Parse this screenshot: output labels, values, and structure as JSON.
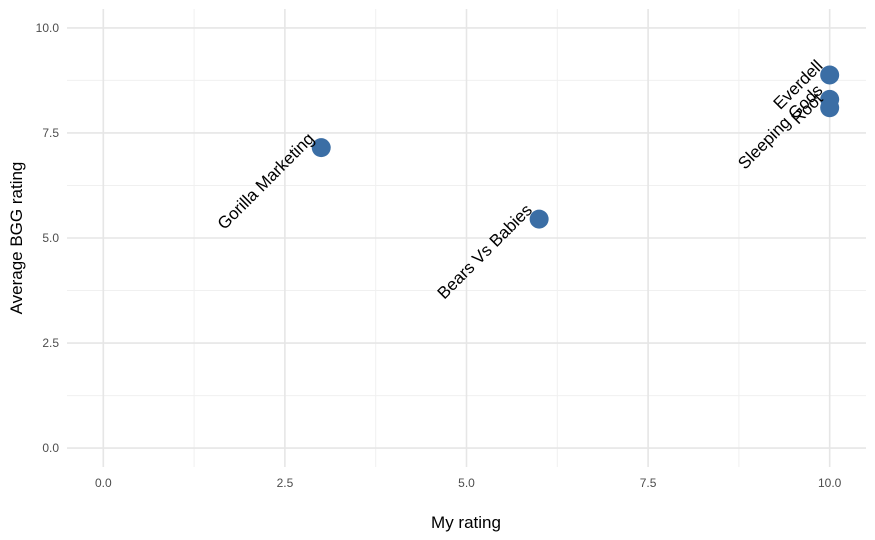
{
  "chart_data": {
    "type": "scatter",
    "title": "",
    "xlabel": "My rating",
    "ylabel": "Average BGG rating",
    "xlim": [
      -0.5,
      10.5
    ],
    "ylim": [
      -0.45,
      10.45
    ],
    "x_ticks": [
      0.0,
      2.5,
      5.0,
      7.5,
      10.0
    ],
    "x_tick_labels": [
      "0.0",
      "2.5",
      "5.0",
      "7.5",
      "10.0"
    ],
    "y_ticks": [
      0.0,
      2.5,
      5.0,
      7.5,
      10.0
    ],
    "y_tick_labels": [
      "0.0",
      "2.5",
      "5.0",
      "7.5",
      "10.0"
    ],
    "grid": true,
    "point_color": "#3b6ea5",
    "label_rotation_deg": -45,
    "points": [
      {
        "label": "Gorilla Marketing",
        "x": 3.0,
        "y": 7.15
      },
      {
        "label": "Bears Vs Babies",
        "x": 6.0,
        "y": 5.45
      },
      {
        "label": "Everdell",
        "x": 10.0,
        "y": 8.88
      },
      {
        "label": "Sleeping Gods",
        "x": 10.0,
        "y": 8.3
      },
      {
        "label": "Root",
        "x": 10.0,
        "y": 8.1
      }
    ]
  }
}
